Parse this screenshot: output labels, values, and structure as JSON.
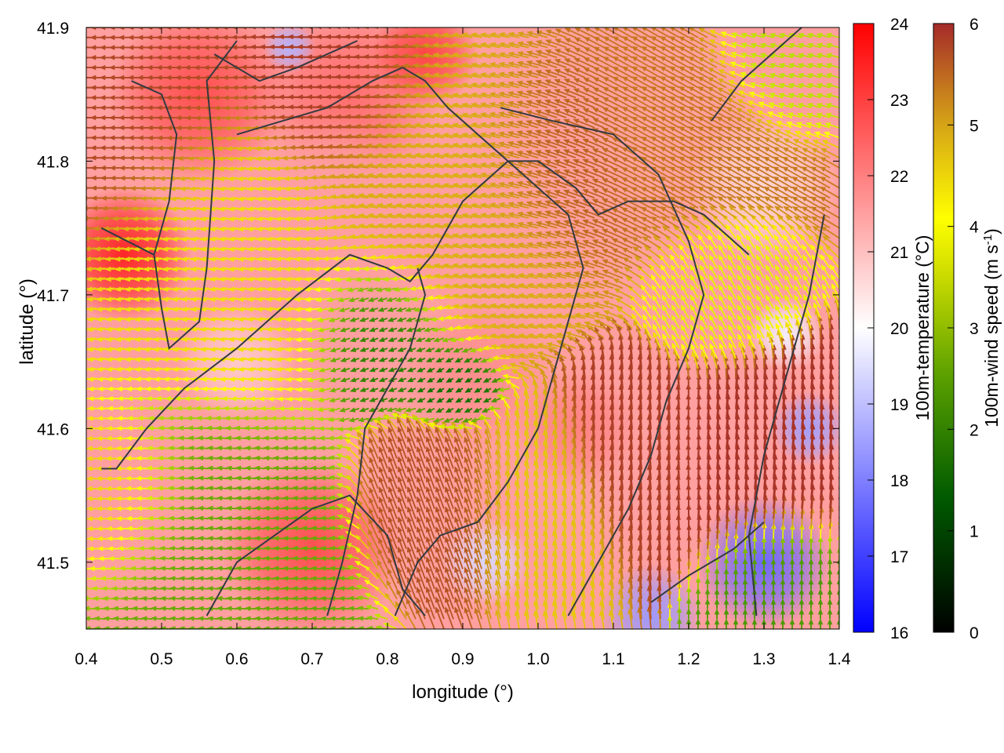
{
  "chart_data": {
    "type": "heatmap",
    "xlabel": "longitude (°)",
    "ylabel": "latitude (°)",
    "xlim": [
      0.4,
      1.4
    ],
    "ylim": [
      41.45,
      41.9
    ],
    "x_ticks": [
      0.4,
      0.5,
      0.6,
      0.7,
      0.8,
      0.9,
      1.0,
      1.1,
      1.2,
      1.3,
      1.4
    ],
    "x_tick_labels": [
      "0.4",
      "0.5",
      "0.6",
      "0.7",
      "0.8",
      "0.9",
      "1.0",
      "1.1",
      "1.2",
      "1.3",
      "1.4"
    ],
    "y_ticks": [
      41.5,
      41.6,
      41.7,
      41.8,
      41.9
    ],
    "y_tick_labels": [
      "41.5",
      "41.6",
      "41.7",
      "41.8",
      "41.9"
    ],
    "grid": false,
    "temperature_colorbar": {
      "label": "100m-temperature (°C)",
      "range": [
        16,
        24
      ],
      "ticks": [
        16,
        17,
        18,
        19,
        20,
        21,
        22,
        23,
        24
      ],
      "tick_labels": [
        "16",
        "17",
        "18",
        "19",
        "20",
        "21",
        "22",
        "23",
        "24"
      ],
      "colors": [
        "#0000ff",
        "#ffffff",
        "#ff0000"
      ]
    },
    "wind_colorbar": {
      "label_main": "100m-wind speed (m s",
      "label_sup": "-1",
      "label_close": ")",
      "range": [
        0,
        6
      ],
      "ticks": [
        0,
        1,
        2,
        3,
        4,
        5,
        6
      ],
      "tick_labels": [
        "0",
        "1",
        "2",
        "3",
        "4",
        "5",
        "6"
      ],
      "colors": [
        "#000000",
        "#006400",
        "#9acd00",
        "#ffff00",
        "#d4a017",
        "#a52a2a"
      ]
    },
    "temperature_field": [
      {
        "lon": 0.45,
        "lat": 41.73,
        "r": 0.09,
        "value": 23.5
      },
      {
        "lon": 0.55,
        "lat": 41.85,
        "r": 0.12,
        "value": 22.8
      },
      {
        "lon": 0.75,
        "lat": 41.85,
        "r": 0.12,
        "value": 22.3
      },
      {
        "lon": 0.7,
        "lat": 41.51,
        "r": 0.12,
        "value": 22.8
      },
      {
        "lon": 0.85,
        "lat": 41.88,
        "r": 0.07,
        "value": 23.0
      },
      {
        "lon": 0.92,
        "lat": 41.64,
        "r": 0.1,
        "value": 21.8
      },
      {
        "lon": 1.05,
        "lat": 41.6,
        "r": 0.08,
        "value": 22.0
      },
      {
        "lon": 1.05,
        "lat": 41.72,
        "r": 0.1,
        "value": 21.5
      },
      {
        "lon": 0.72,
        "lat": 41.78,
        "r": 0.1,
        "value": 21.5
      },
      {
        "lon": 0.6,
        "lat": 41.65,
        "r": 0.08,
        "value": 20.8
      },
      {
        "lon": 1.3,
        "lat": 41.78,
        "r": 0.1,
        "value": 20.6
      },
      {
        "lon": 1.3,
        "lat": 41.5,
        "r": 0.09,
        "value": 17.6
      },
      {
        "lon": 1.15,
        "lat": 41.46,
        "r": 0.07,
        "value": 18.4
      },
      {
        "lon": 1.36,
        "lat": 41.6,
        "r": 0.05,
        "value": 18.5
      },
      {
        "lon": 0.67,
        "lat": 41.885,
        "r": 0.035,
        "value": 18.8
      },
      {
        "lon": 0.93,
        "lat": 41.5,
        "r": 0.06,
        "value": 19.4
      },
      {
        "lon": 1.33,
        "lat": 41.67,
        "r": 0.05,
        "value": 19.8
      }
    ],
    "wind_field": [
      {
        "lon": 0.45,
        "lat": 41.85,
        "r": 0.15,
        "speed": 5.7,
        "dir_deg": 180
      },
      {
        "lon": 0.75,
        "lat": 41.86,
        "r": 0.1,
        "speed": 5.8,
        "dir_deg": 178
      },
      {
        "lon": 0.6,
        "lat": 41.72,
        "r": 0.15,
        "speed": 4.0,
        "dir_deg": 185
      },
      {
        "lon": 0.58,
        "lat": 41.53,
        "r": 0.13,
        "speed": 2.0,
        "dir_deg": 175
      },
      {
        "lon": 0.8,
        "lat": 41.67,
        "r": 0.08,
        "speed": 1.5,
        "dir_deg": 200
      },
      {
        "lon": 0.89,
        "lat": 41.63,
        "r": 0.05,
        "speed": 1.3,
        "dir_deg": 210
      },
      {
        "lon": 0.9,
        "lat": 41.78,
        "r": 0.15,
        "speed": 4.6,
        "dir_deg": 170
      },
      {
        "lon": 1.05,
        "lat": 41.8,
        "r": 0.1,
        "speed": 5.5,
        "dir_deg": 160
      },
      {
        "lon": 1.18,
        "lat": 41.82,
        "r": 0.12,
        "speed": 5.2,
        "dir_deg": 150
      },
      {
        "lon": 0.87,
        "lat": 41.55,
        "r": 0.08,
        "speed": 5.6,
        "dir_deg": 110
      },
      {
        "lon": 1.0,
        "lat": 41.55,
        "r": 0.08,
        "speed": 4.3,
        "dir_deg": 100
      },
      {
        "lon": 1.12,
        "lat": 41.58,
        "r": 0.08,
        "speed": 5.8,
        "dir_deg": 95
      },
      {
        "lon": 1.3,
        "lat": 41.58,
        "r": 0.09,
        "speed": 5.9,
        "dir_deg": 85
      },
      {
        "lon": 1.32,
        "lat": 41.48,
        "r": 0.06,
        "speed": 1.8,
        "dir_deg": 90
      },
      {
        "lon": 1.25,
        "lat": 41.7,
        "r": 0.07,
        "speed": 3.3,
        "dir_deg": 120
      },
      {
        "lon": 1.33,
        "lat": 41.88,
        "r": 0.07,
        "speed": 2.8,
        "dir_deg": 165
      },
      {
        "lon": 0.45,
        "lat": 41.55,
        "r": 0.08,
        "speed": 4.2,
        "dir_deg": 180
      }
    ],
    "contour_lines": [
      [
        [
          0.42,
          41.75
        ],
        [
          0.49,
          41.73
        ],
        [
          0.5,
          41.69
        ],
        [
          0.51,
          41.66
        ],
        [
          0.55,
          41.68
        ],
        [
          0.56,
          41.72
        ],
        [
          0.57,
          41.8
        ],
        [
          0.56,
          41.86
        ],
        [
          0.6,
          41.89
        ]
      ],
      [
        [
          0.46,
          41.86
        ],
        [
          0.5,
          41.85
        ],
        [
          0.52,
          41.82
        ],
        [
          0.51,
          41.77
        ],
        [
          0.49,
          41.73
        ]
      ],
      [
        [
          0.42,
          41.57
        ],
        [
          0.44,
          41.57
        ],
        [
          0.48,
          41.6
        ],
        [
          0.53,
          41.63
        ],
        [
          0.6,
          41.66
        ],
        [
          0.68,
          41.7
        ],
        [
          0.75,
          41.73
        ],
        [
          0.8,
          41.72
        ],
        [
          0.83,
          41.71
        ],
        [
          0.86,
          41.73
        ],
        [
          0.9,
          41.77
        ],
        [
          0.96,
          41.8
        ],
        [
          1.0,
          41.8
        ],
        [
          1.05,
          41.78
        ],
        [
          1.08,
          41.76
        ],
        [
          1.12,
          41.77
        ],
        [
          1.18,
          41.77
        ],
        [
          1.22,
          41.76
        ],
        [
          1.28,
          41.73
        ]
      ],
      [
        [
          0.81,
          41.46
        ],
        [
          0.84,
          41.5
        ],
        [
          0.87,
          41.52
        ],
        [
          0.92,
          41.53
        ],
        [
          0.96,
          41.56
        ],
        [
          1.0,
          41.6
        ],
        [
          1.02,
          41.64
        ],
        [
          1.04,
          41.68
        ],
        [
          1.06,
          41.72
        ],
        [
          1.04,
          41.76
        ],
        [
          1.0,
          41.78
        ],
        [
          0.96,
          41.8
        ],
        [
          0.92,
          41.82
        ],
        [
          0.88,
          41.84
        ],
        [
          0.85,
          41.86
        ],
        [
          0.82,
          41.87
        ],
        [
          0.78,
          41.86
        ],
        [
          0.72,
          41.84
        ],
        [
          0.66,
          41.83
        ],
        [
          0.6,
          41.82
        ]
      ],
      [
        [
          1.04,
          41.46
        ],
        [
          1.08,
          41.5
        ],
        [
          1.12,
          41.54
        ],
        [
          1.15,
          41.58
        ],
        [
          1.17,
          41.62
        ],
        [
          1.2,
          41.66
        ],
        [
          1.22,
          41.7
        ],
        [
          1.2,
          41.74
        ],
        [
          1.16,
          41.79
        ],
        [
          1.1,
          41.82
        ],
        [
          1.02,
          41.83
        ],
        [
          0.95,
          41.84
        ]
      ],
      [
        [
          0.56,
          41.46
        ],
        [
          0.6,
          41.5
        ],
        [
          0.65,
          41.52
        ],
        [
          0.7,
          41.54
        ],
        [
          0.75,
          41.55
        ],
        [
          0.8,
          41.52
        ],
        [
          0.82,
          41.48
        ],
        [
          0.85,
          41.46
        ]
      ],
      [
        [
          0.72,
          41.46
        ],
        [
          0.74,
          41.5
        ],
        [
          0.76,
          41.55
        ],
        [
          0.77,
          41.6
        ],
        [
          0.8,
          41.63
        ],
        [
          0.83,
          41.66
        ],
        [
          0.85,
          41.7
        ],
        [
          0.84,
          41.72
        ]
      ],
      [
        [
          1.29,
          41.46
        ],
        [
          1.28,
          41.52
        ],
        [
          1.3,
          41.58
        ],
        [
          1.33,
          41.64
        ],
        [
          1.36,
          41.7
        ],
        [
          1.38,
          41.76
        ]
      ],
      [
        [
          1.15,
          41.47
        ],
        [
          1.2,
          41.49
        ],
        [
          1.26,
          41.51
        ],
        [
          1.3,
          41.53
        ]
      ],
      [
        [
          1.23,
          41.83
        ],
        [
          1.27,
          41.86
        ],
        [
          1.31,
          41.88
        ],
        [
          1.35,
          41.9
        ]
      ],
      [
        [
          0.57,
          41.88
        ],
        [
          0.6,
          41.87
        ],
        [
          0.63,
          41.86
        ],
        [
          0.68,
          41.87
        ],
        [
          0.72,
          41.88
        ],
        [
          0.76,
          41.89
        ]
      ]
    ]
  }
}
